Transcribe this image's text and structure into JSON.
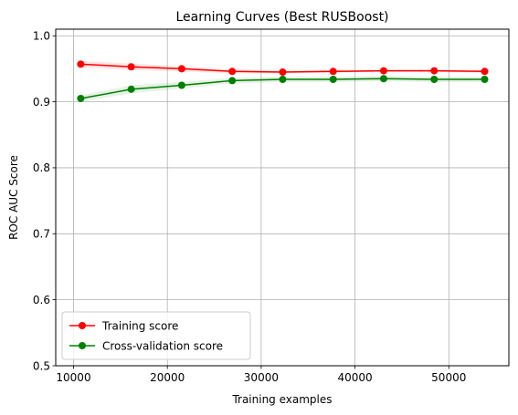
{
  "chart_data": {
    "type": "line",
    "title": "Learning Curves (Best RUSBoost)",
    "xlabel": "Training examples",
    "ylabel": "ROC AUC Score",
    "xlim": [
      8100,
      56400
    ],
    "ylim": [
      0.5,
      1.01
    ],
    "xticks": [
      10000,
      20000,
      30000,
      40000,
      50000
    ],
    "yticks": [
      0.5,
      0.6,
      0.7,
      0.8,
      0.9,
      1.0
    ],
    "grid": true,
    "legend_position": "lower-left",
    "x": [
      10764,
      16146,
      21528,
      26910,
      32292,
      37674,
      43056,
      48438,
      53820
    ],
    "series": [
      {
        "name": "Training score",
        "color": "#ff0000",
        "values": [
          0.957,
          0.953,
          0.95,
          0.946,
          0.945,
          0.946,
          0.947,
          0.947,
          0.946
        ],
        "std": [
          0.005,
          0.005,
          0.004,
          0.003,
          0.002,
          0.002,
          0.002,
          0.002,
          0.002
        ]
      },
      {
        "name": "Cross-validation score",
        "color": "#008000",
        "values": [
          0.905,
          0.919,
          0.925,
          0.932,
          0.934,
          0.934,
          0.935,
          0.934,
          0.934
        ],
        "std": [
          0.005,
          0.006,
          0.005,
          0.004,
          0.004,
          0.004,
          0.004,
          0.004,
          0.004
        ]
      }
    ]
  }
}
